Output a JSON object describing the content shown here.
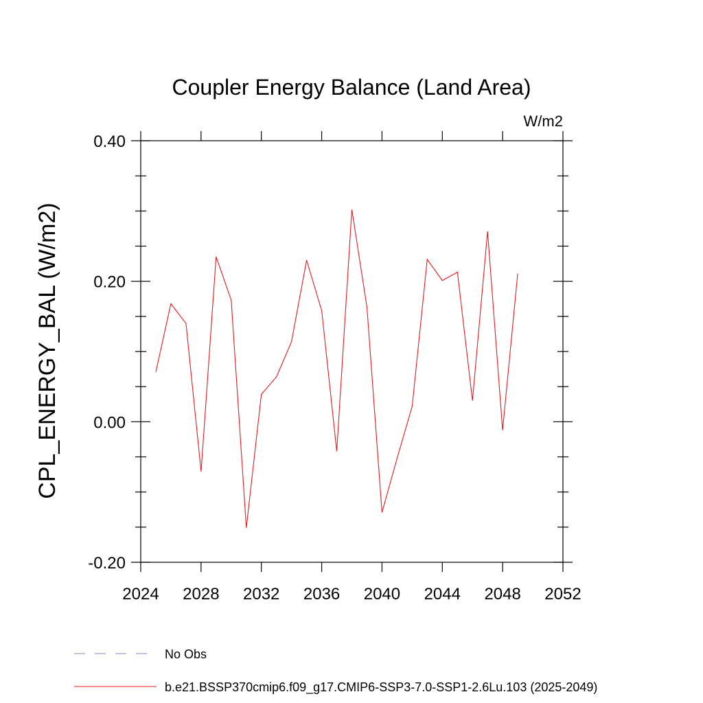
{
  "chart_data": {
    "type": "line",
    "title": "Coupler Energy Balance (Land Area)",
    "units": "W/m2",
    "xlabel": "",
    "ylabel": "CPL_ENERGY_BAL  (W/m2)",
    "xlim": [
      2024,
      2052
    ],
    "ylim": [
      -0.2,
      0.4
    ],
    "x_ticks": [
      2024,
      2028,
      2032,
      2036,
      2040,
      2044,
      2048,
      2052
    ],
    "x_tick_labels": [
      "2024",
      "2028",
      "2032",
      "2036",
      "2040",
      "2044",
      "2048",
      "2052"
    ],
    "y_ticks": [
      -0.2,
      0.0,
      0.2,
      0.4
    ],
    "y_tick_labels": [
      "-0.20",
      "0.00",
      "0.20",
      "0.40"
    ],
    "y_minor_step": 0.05,
    "series": [
      {
        "name": "b.e21.BSSP370cmip6.f09_g17.CMIP6-SSP3-7.0-SSP1-2.6Lu.103 (2025-2049)",
        "color": "#e8181e",
        "x": [
          2025,
          2026,
          2027,
          2028,
          2029,
          2030,
          2031,
          2032,
          2033,
          2034,
          2035,
          2036,
          2037,
          2038,
          2039,
          2040,
          2041,
          2042,
          2043,
          2044,
          2045,
          2046,
          2047,
          2048,
          2049
        ],
        "values": [
          0.071,
          0.168,
          0.14,
          -0.071,
          0.235,
          0.173,
          -0.151,
          0.039,
          0.064,
          0.114,
          0.23,
          0.158,
          -0.042,
          0.302,
          0.163,
          -0.129,
          -0.052,
          0.022,
          0.231,
          0.201,
          0.213,
          0.03,
          0.271,
          -0.012,
          0.211
        ]
      }
    ],
    "legend": [
      {
        "label": "No Obs",
        "style": "dashed",
        "color": "#8a82c8"
      },
      {
        "label": "b.e21.BSSP370cmip6.f09_g17.CMIP6-SSP3-7.0-SSP1-2.6Lu.103 (2025-2049)",
        "style": "solid",
        "color": "#e8181e"
      }
    ],
    "legend_position": "bottom"
  }
}
